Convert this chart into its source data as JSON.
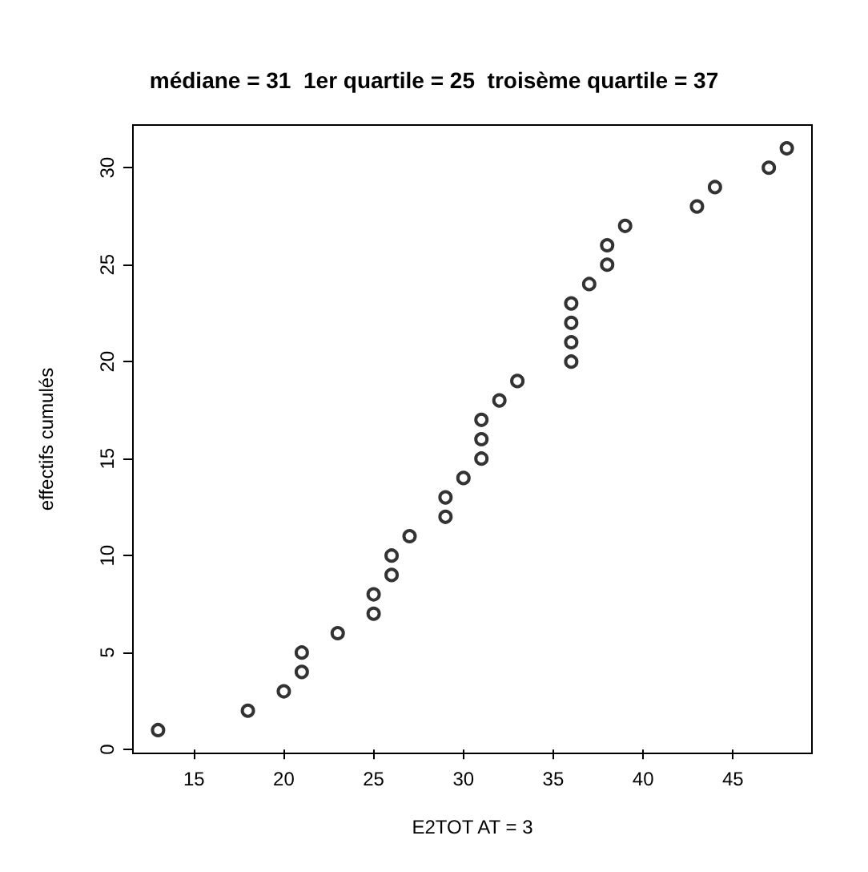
{
  "chart_data": {
    "type": "scatter",
    "title": "médiane = 31  1er quartile = 25  troisème quartile = 37",
    "xlabel": "E2TOT AT = 3",
    "ylabel": "effectifs cumulés",
    "x": [
      13,
      18,
      20,
      21,
      21,
      23,
      25,
      25,
      26,
      26,
      27,
      29,
      29,
      30,
      31,
      31,
      31,
      32,
      33,
      36,
      36,
      36,
      36,
      37,
      38,
      38,
      39,
      43,
      44,
      47,
      48
    ],
    "values": [
      1,
      2,
      3,
      4,
      5,
      6,
      7,
      8,
      9,
      10,
      11,
      12,
      13,
      14,
      15,
      16,
      17,
      18,
      19,
      20,
      21,
      22,
      23,
      24,
      25,
      26,
      27,
      28,
      29,
      30,
      31
    ],
    "color": "#000000",
    "marker": "circle",
    "grid": false,
    "xlim": [
      11.6,
      49.4
    ],
    "xticks": [
      15,
      20,
      25,
      30,
      35,
      40,
      45
    ],
    "ylim": [
      -0.2,
      32.2
    ],
    "yticks": [
      0,
      5,
      10,
      15,
      20,
      25,
      30
    ]
  }
}
